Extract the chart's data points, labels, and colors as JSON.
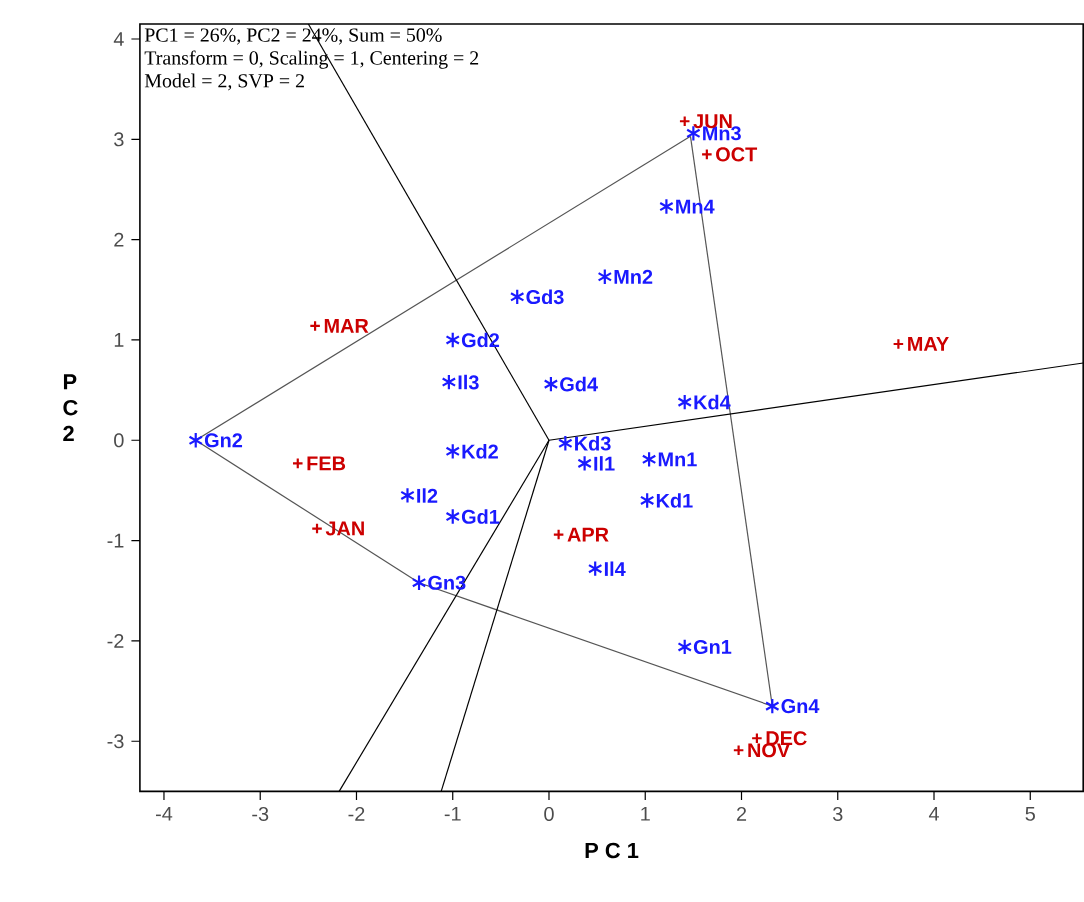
{
  "chart_data": {
    "type": "scatter",
    "xlabel": "P C 1",
    "ylabel": "P C 2",
    "annotations": [
      "PC1 = 26%, PC2 = 24%, Sum = 50%",
      "Transform = 0, Scaling = 1, Centering = 2",
      "Model = 2, SVP = 2"
    ],
    "xlim": [
      -4.25,
      5.55
    ],
    "ylim": [
      -3.5,
      4.15
    ],
    "xticks": [
      -4,
      -3,
      -2,
      -1,
      0,
      1,
      2,
      3,
      4,
      5
    ],
    "yticks": [
      -3,
      -2,
      -1,
      0,
      1,
      2,
      3,
      4
    ],
    "grid": false,
    "legend": false,
    "series": [
      {
        "type": "line",
        "color": "#555555",
        "x": [
          -3.67,
          1.47
        ],
        "values": [
          0,
          3.03
        ]
      },
      {
        "type": "line",
        "color": "#555555",
        "x": [
          1.47,
          2.32
        ],
        "values": [
          3.03,
          -2.65
        ]
      },
      {
        "type": "line",
        "color": "#555555",
        "x": [
          -1.35,
          2.32
        ],
        "values": [
          -1.42,
          -2.65
        ]
      },
      {
        "type": "line",
        "color": "#555555",
        "x": [
          -3.67,
          -1.35
        ],
        "values": [
          0,
          -1.42
        ]
      },
      {
        "type": "line",
        "color": "#000000",
        "x": [
          0,
          -2.5
        ],
        "values": [
          0,
          4.15
        ]
      },
      {
        "type": "line",
        "color": "#000000",
        "x": [
          0,
          5.55
        ],
        "values": [
          0,
          0.77
        ]
      },
      {
        "type": "line",
        "color": "#000000",
        "x": [
          0,
          -2.18
        ],
        "values": [
          0,
          -3.5
        ]
      },
      {
        "type": "line",
        "color": "#000000",
        "x": [
          0,
          -1.12
        ],
        "values": [
          0,
          -3.5
        ]
      },
      {
        "name": "Gn2",
        "color": "#1a1aff",
        "x": [
          -3.67
        ],
        "values": [
          0
        ]
      },
      {
        "name": "Gd3",
        "color": "#1a1aff",
        "x": [
          -0.33
        ],
        "values": [
          1.43
        ]
      },
      {
        "name": "Mn2",
        "color": "#1a1aff",
        "x": [
          0.58
        ],
        "values": [
          1.63
        ]
      },
      {
        "name": "Gd2",
        "color": "#1a1aff",
        "x": [
          -1.0
        ],
        "values": [
          1.0
        ]
      },
      {
        "name": "Il3",
        "color": "#1a1aff",
        "x": [
          -1.04
        ],
        "values": [
          0.58
        ]
      },
      {
        "name": "Gd4",
        "color": "#1a1aff",
        "x": [
          0.02
        ],
        "values": [
          0.56
        ]
      },
      {
        "name": "Mn3",
        "color": "#1a1aff",
        "x": [
          1.5
        ],
        "values": [
          3.06
        ]
      },
      {
        "name": "Mn4",
        "color": "#1a1aff",
        "x": [
          1.22
        ],
        "values": [
          2.33
        ]
      },
      {
        "name": "Kd4",
        "color": "#1a1aff",
        "x": [
          1.41
        ],
        "values": [
          0.38
        ]
      },
      {
        "name": "Kd2",
        "color": "#1a1aff",
        "x": [
          -1.0
        ],
        "values": [
          -0.11
        ]
      },
      {
        "name": "Kd3",
        "color": "#1a1aff",
        "x": [
          0.17
        ],
        "values": [
          -0.03
        ]
      },
      {
        "name": "Il1",
        "color": "#1a1aff",
        "x": [
          0.37
        ],
        "values": [
          -0.23
        ]
      },
      {
        "name": "Mn1",
        "color": "#1a1aff",
        "x": [
          1.04
        ],
        "values": [
          -0.19
        ]
      },
      {
        "name": "Kd1",
        "color": "#1a1aff",
        "x": [
          1.02
        ],
        "values": [
          -0.6
        ]
      },
      {
        "name": "Il2",
        "color": "#1a1aff",
        "x": [
          -1.47
        ],
        "values": [
          -0.55
        ]
      },
      {
        "name": "Gd1",
        "color": "#1a1aff",
        "x": [
          -1.0
        ],
        "values": [
          -0.76
        ]
      },
      {
        "name": "Gn3",
        "color": "#1a1aff",
        "x": [
          -1.35
        ],
        "values": [
          -1.42
        ]
      },
      {
        "name": "Il4",
        "color": "#1a1aff",
        "x": [
          0.48
        ],
        "values": [
          -1.28
        ]
      },
      {
        "name": "Gn1",
        "color": "#1a1aff",
        "x": [
          1.41
        ],
        "values": [
          -2.06
        ]
      },
      {
        "name": "Gn4",
        "color": "#1a1aff",
        "x": [
          2.32
        ],
        "values": [
          -2.65
        ]
      },
      {
        "name": "JUN",
        "color": "#cc0000",
        "marker": "cross",
        "x": [
          1.41
        ],
        "values": [
          3.18
        ]
      },
      {
        "name": "OCT",
        "color": "#cc0000",
        "marker": "cross",
        "x": [
          1.64
        ],
        "values": [
          2.85
        ]
      },
      {
        "name": "MAR",
        "color": "#cc0000",
        "marker": "cross",
        "x": [
          -2.43
        ],
        "values": [
          1.14
        ]
      },
      {
        "name": "MAY",
        "color": "#cc0000",
        "marker": "cross",
        "x": [
          3.63
        ],
        "values": [
          0.96
        ]
      },
      {
        "name": "FEB",
        "color": "#cc0000",
        "marker": "cross",
        "x": [
          -2.61
        ],
        "values": [
          -0.23
        ]
      },
      {
        "name": "JAN",
        "color": "#cc0000",
        "marker": "cross",
        "x": [
          -2.41
        ],
        "values": [
          -0.88
        ]
      },
      {
        "name": "APR",
        "color": "#cc0000",
        "marker": "cross",
        "x": [
          0.1
        ],
        "values": [
          -0.94
        ]
      },
      {
        "name": "DEC",
        "color": "#cc0000",
        "marker": "cross",
        "x": [
          2.16
        ],
        "values": [
          -2.97
        ]
      },
      {
        "name": "NOV",
        "color": "#cc0000",
        "marker": "cross",
        "x": [
          1.97
        ],
        "values": [
          -3.09
        ]
      }
    ]
  }
}
